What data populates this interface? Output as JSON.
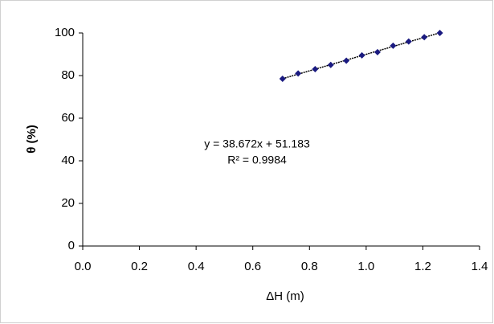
{
  "chart_data": {
    "type": "scatter",
    "x_label": "ΔH (m)",
    "y_label": "θ (%)",
    "annotations": [
      "y = 38.672x + 51.183",
      "R² = 0.9984"
    ],
    "x": [
      0.705,
      0.76,
      0.82,
      0.875,
      0.93,
      0.985,
      1.04,
      1.095,
      1.15,
      1.205,
      1.26
    ],
    "series": [
      {
        "color": "#1a1a80",
        "values": [
          78.5,
          81,
          83,
          85,
          87,
          89.5,
          91,
          94,
          96,
          98,
          100
        ]
      }
    ],
    "xlim": [
      0,
      1.4
    ],
    "xticks": [
      {
        "value": 0,
        "label": "0.0"
      },
      0.2,
      0.4,
      0.6,
      0.8,
      {
        "value": 1,
        "label": "1.0"
      },
      1.2,
      1.4
    ],
    "ylim": [
      0,
      100
    ],
    "yticks": [
      0,
      20,
      40,
      60,
      80,
      100
    ],
    "trendline": true,
    "grid": false
  }
}
